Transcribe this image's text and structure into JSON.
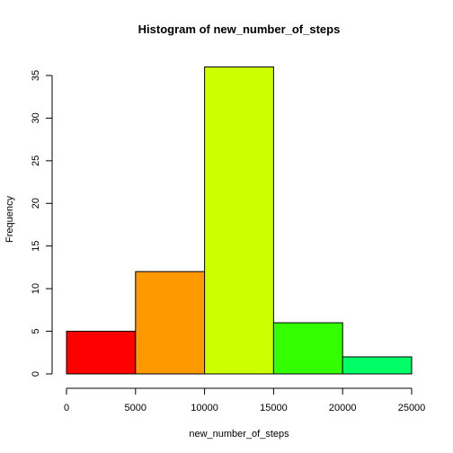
{
  "chart_data": {
    "type": "bar",
    "title": "Histogram of new_number_of_steps",
    "xlabel": "new_number_of_steps",
    "ylabel": "Frequency",
    "bins": [
      {
        "start": 0,
        "end": 5000,
        "count": 5,
        "color": "#FF0000"
      },
      {
        "start": 5000,
        "end": 10000,
        "count": 12,
        "color": "#FF9900"
      },
      {
        "start": 10000,
        "end": 15000,
        "count": 36,
        "color": "#CCFF00"
      },
      {
        "start": 15000,
        "end": 20000,
        "count": 6,
        "color": "#33FF00"
      },
      {
        "start": 20000,
        "end": 25000,
        "count": 2,
        "color": "#00FF66"
      }
    ],
    "xlim": [
      0,
      25000
    ],
    "ylim": [
      0,
      36
    ],
    "x_ticks": [
      0,
      5000,
      10000,
      15000,
      20000,
      25000
    ],
    "y_ticks": [
      0,
      5,
      10,
      15,
      20,
      25,
      30,
      35
    ],
    "grid": false,
    "legend": false
  }
}
